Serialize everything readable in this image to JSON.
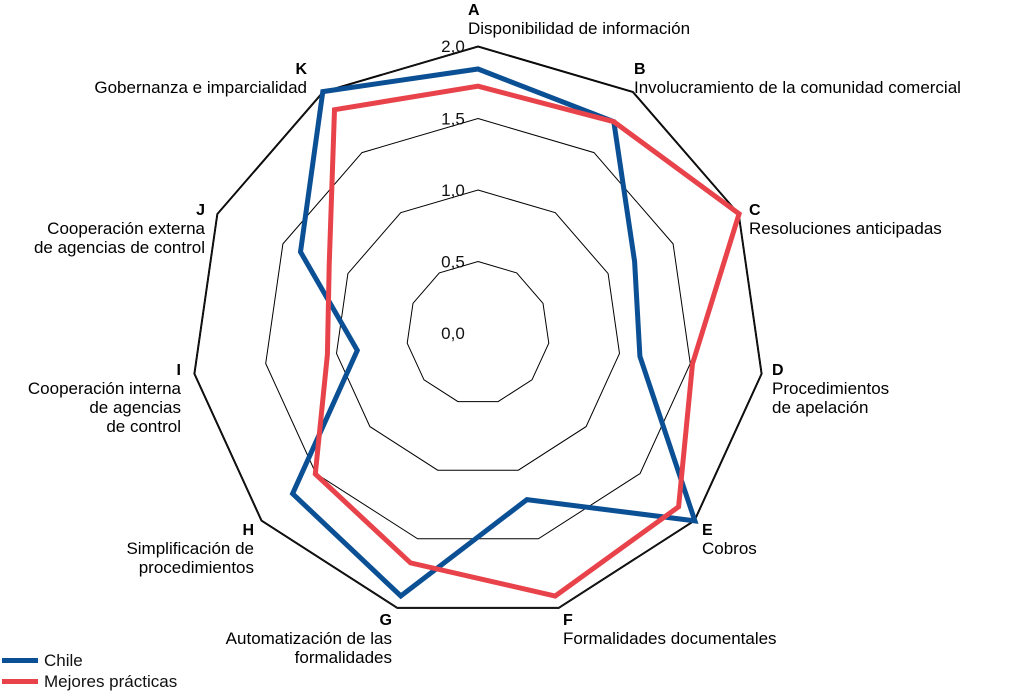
{
  "chart_data": {
    "type": "radar",
    "categories": [
      {
        "letter": "A",
        "label": [
          "Disponibilidad de información"
        ]
      },
      {
        "letter": "B",
        "label": [
          "Involucramiento de la comunidad comercial"
        ]
      },
      {
        "letter": "C",
        "label": [
          "Resoluciones anticipadas"
        ]
      },
      {
        "letter": "D",
        "label": [
          "Procedimientos",
          "de apelación"
        ]
      },
      {
        "letter": "E",
        "label": [
          "Cobros"
        ]
      },
      {
        "letter": "F",
        "label": [
          "Formalidades documentales"
        ]
      },
      {
        "letter": "G",
        "label": [
          "Automatización de las",
          "formalidades"
        ]
      },
      {
        "letter": "H",
        "label": [
          "Simplificación de",
          "procedimientos"
        ]
      },
      {
        "letter": "I",
        "label": [
          "Cooperación interna",
          "de agencias",
          "de control"
        ]
      },
      {
        "letter": "J",
        "label": [
          "Cooperación externa",
          "de agencias de control"
        ]
      },
      {
        "letter": "K",
        "label": [
          "Gobernanza e imparcialidad"
        ]
      }
    ],
    "ticks": [
      "0,0",
      "0,5",
      "1,0",
      "1,5",
      "2,0"
    ],
    "rmin": 0,
    "rmax": 2.0,
    "series": [
      {
        "name": "Chile",
        "color": "#0b4f94",
        "values": [
          1.84,
          1.75,
          1.2,
          1.14,
          2.0,
          1.21,
          1.91,
          1.71,
          0.85,
          1.36,
          2.0
        ]
      },
      {
        "name": "Mejores prácticas",
        "color": "#e8434a",
        "values": [
          1.72,
          1.75,
          2.0,
          1.51,
          1.85,
          1.91,
          1.67,
          1.5,
          1.06,
          1.14,
          1.85
        ]
      }
    ],
    "legend_position": "bottom-left"
  }
}
